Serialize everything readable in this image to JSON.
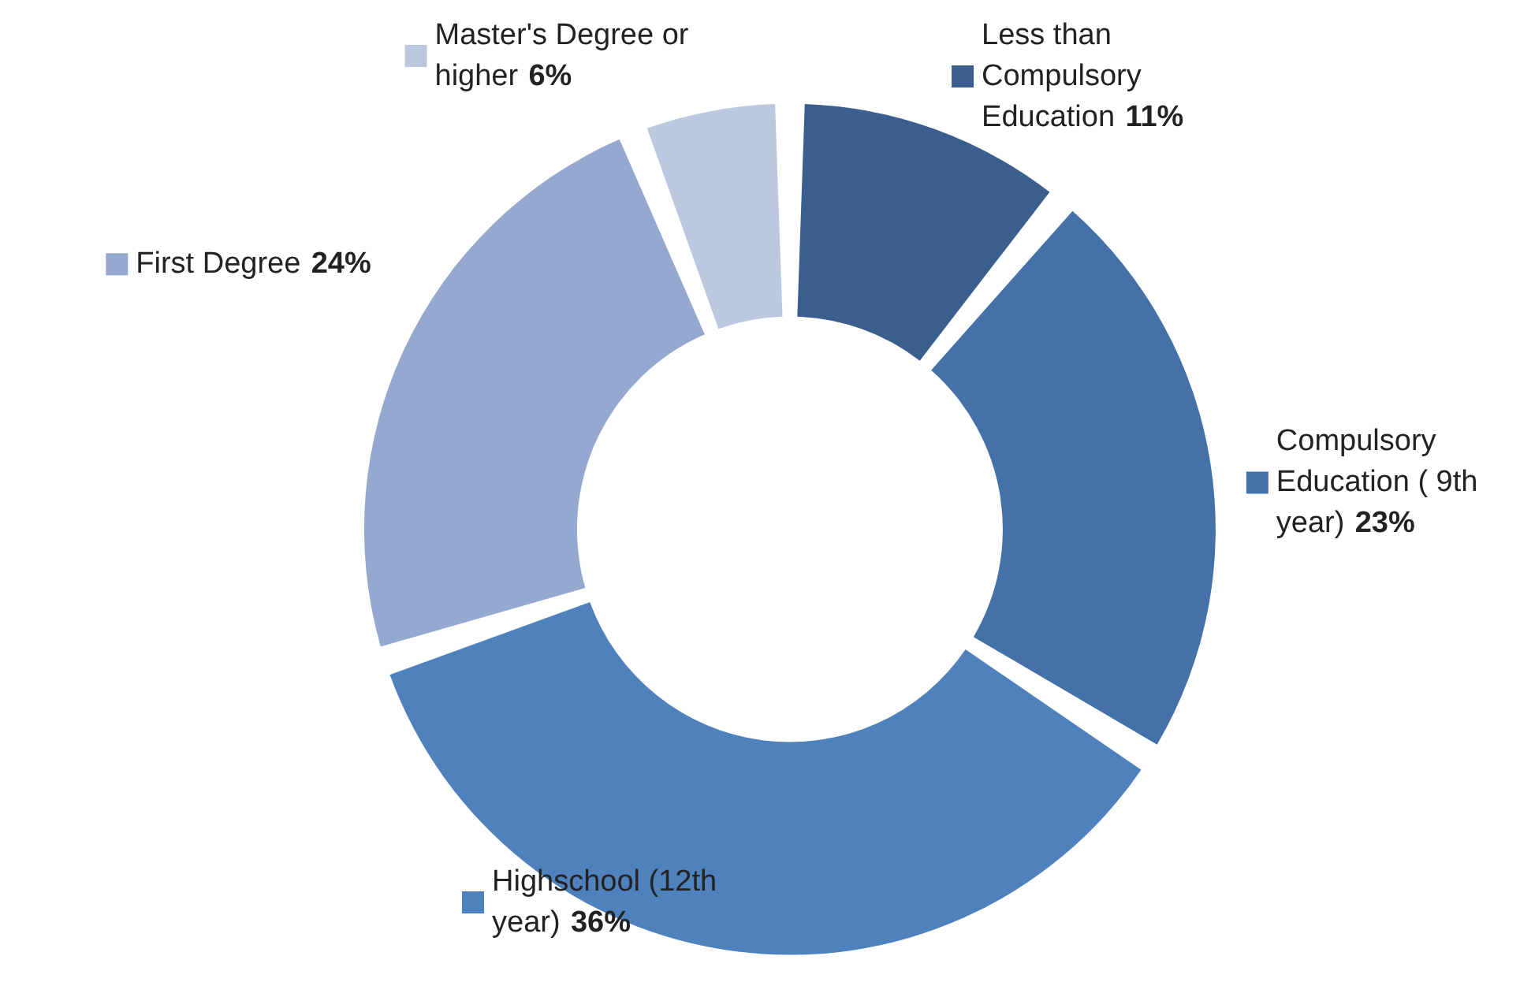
{
  "chart_data": {
    "type": "donut",
    "categories": [
      "Less than Compulsory Education",
      "Compulsory Education ( 9th year)",
      "Highschool (12th year)",
      "First Degree",
      "Master's Degree or higher"
    ],
    "values": [
      11,
      23,
      36,
      24,
      6
    ],
    "value_labels": [
      "11%",
      "23%",
      "36%",
      "24%",
      "6%"
    ],
    "colors": [
      "#3a5f8f",
      "#4472a8",
      "#4f81bd",
      "#95a9d0",
      "#bcc8e0"
    ],
    "legend": true
  }
}
